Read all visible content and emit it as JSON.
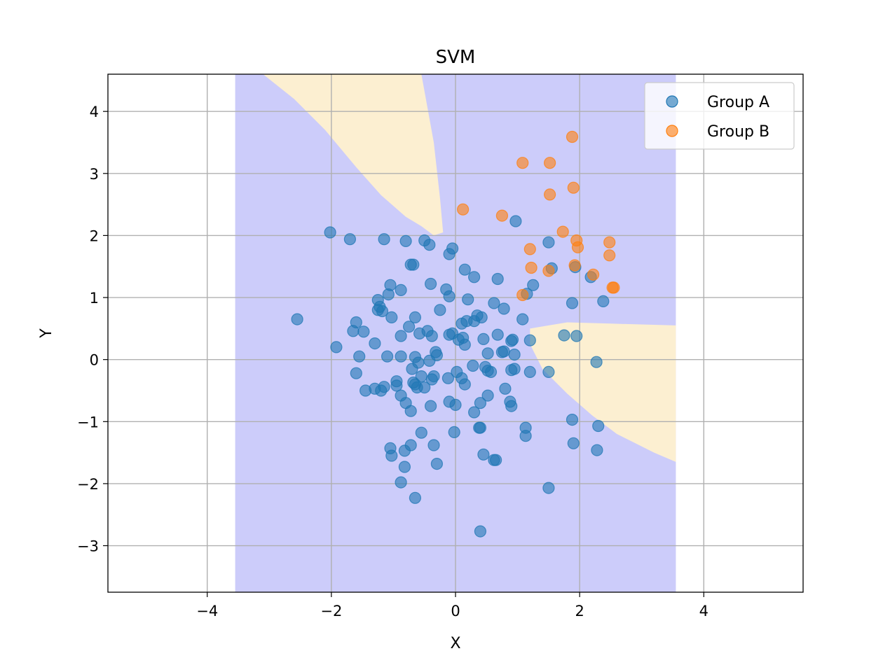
{
  "chart_data": {
    "type": "scatter",
    "title": "SVM",
    "xlabel": "X",
    "ylabel": "Y",
    "xlim": [
      -5.6,
      5.6
    ],
    "ylim": [
      -3.75,
      4.6
    ],
    "xticks": [
      -4,
      -2,
      0,
      2,
      4
    ],
    "yticks": [
      -3,
      -2,
      -1,
      0,
      1,
      2,
      3,
      4
    ],
    "xtick_labels": [
      "−4",
      "−2",
      "0",
      "2",
      "4"
    ],
    "ytick_labels": [
      "−3",
      "−2",
      "−1",
      "0",
      "1",
      "2",
      "3",
      "4"
    ],
    "grid": true,
    "legend_position": "top-right",
    "colors": {
      "group_a": "#1f77b4",
      "group_b": "#ff7f0e",
      "region_a": "#ccccfa",
      "region_b": "#fcefd1",
      "grid": "#b0b0b0"
    },
    "decision_regions": [
      {
        "class": "Group A",
        "polygon": [
          [
            -3.55,
            -3.75
          ],
          [
            3.55,
            -3.75
          ],
          [
            3.55,
            4.6
          ],
          [
            -3.55,
            4.6
          ]
        ]
      },
      {
        "class": "Group B",
        "polygon": [
          [
            -3.1,
            4.6
          ],
          [
            -2.6,
            4.2
          ],
          [
            -2.1,
            3.7
          ],
          [
            -1.6,
            3.1
          ],
          [
            -1.2,
            2.65
          ],
          [
            -0.8,
            2.3
          ],
          [
            -0.55,
            2.15
          ],
          [
            -0.35,
            2.0
          ],
          [
            -0.2,
            2.05
          ],
          [
            -0.25,
            2.6
          ],
          [
            -0.35,
            3.5
          ],
          [
            -0.55,
            4.6
          ]
        ]
      },
      {
        "class": "Group B",
        "polygon": [
          [
            1.2,
            0.5
          ],
          [
            1.5,
            0.55
          ],
          [
            1.8,
            0.6
          ],
          [
            2.5,
            0.58
          ],
          [
            3.55,
            0.55
          ],
          [
            3.55,
            -1.65
          ],
          [
            3.2,
            -1.5
          ],
          [
            2.6,
            -1.2
          ],
          [
            2.2,
            -0.9
          ],
          [
            1.8,
            -0.55
          ],
          [
            1.4,
            -0.15
          ],
          [
            1.2,
            0.25
          ]
        ]
      }
    ],
    "series": [
      {
        "name": "Group A",
        "points": [
          [
            -2.55,
            0.65
          ],
          [
            -2.02,
            2.05
          ],
          [
            -1.7,
            1.94
          ],
          [
            -1.15,
            1.94
          ],
          [
            -0.8,
            1.91
          ],
          [
            -0.5,
            1.92
          ],
          [
            -0.42,
            1.85
          ],
          [
            -0.05,
            1.79
          ],
          [
            -0.1,
            1.7
          ],
          [
            -0.72,
            1.53
          ],
          [
            -0.68,
            1.53
          ],
          [
            0.15,
            1.45
          ],
          [
            0.3,
            1.33
          ],
          [
            0.68,
            1.3
          ],
          [
            0.97,
            2.23
          ],
          [
            1.5,
            1.89
          ],
          [
            1.55,
            1.47
          ],
          [
            1.93,
            1.49
          ],
          [
            2.18,
            1.33
          ],
          [
            2.38,
            0.94
          ],
          [
            1.88,
            0.91
          ],
          [
            1.25,
            1.2
          ],
          [
            1.15,
            1.06
          ],
          [
            1.08,
            0.65
          ],
          [
            1.2,
            0.31
          ],
          [
            1.75,
            0.39
          ],
          [
            1.95,
            0.38
          ],
          [
            2.27,
            -0.04
          ],
          [
            1.5,
            -0.2
          ],
          [
            1.2,
            -0.2
          ],
          [
            0.95,
            -0.15
          ],
          [
            0.9,
            -0.17
          ],
          [
            0.95,
            0.08
          ],
          [
            0.78,
            0.13
          ],
          [
            0.75,
            0.12
          ],
          [
            0.92,
            0.32
          ],
          [
            0.9,
            0.3
          ],
          [
            0.68,
            0.4
          ],
          [
            0.78,
            0.82
          ],
          [
            0.62,
            0.91
          ],
          [
            0.35,
            0.71
          ],
          [
            0.42,
            0.68
          ],
          [
            0.3,
            0.62
          ],
          [
            0.2,
            0.97
          ],
          [
            -0.15,
            1.13
          ],
          [
            -0.1,
            1.02
          ],
          [
            -0.4,
            1.22
          ],
          [
            -0.25,
            0.8
          ],
          [
            -0.88,
            1.12
          ],
          [
            -1.05,
            1.2
          ],
          [
            -1.08,
            1.05
          ],
          [
            -1.25,
            0.96
          ],
          [
            -1.22,
            0.85
          ],
          [
            -1.25,
            0.8
          ],
          [
            -1.18,
            0.78
          ],
          [
            -1.03,
            0.68
          ],
          [
            -0.65,
            0.68
          ],
          [
            -0.75,
            0.53
          ],
          [
            -0.58,
            0.42
          ],
          [
            -0.45,
            0.46
          ],
          [
            -0.38,
            0.38
          ],
          [
            -0.1,
            0.4
          ],
          [
            -0.05,
            0.42
          ],
          [
            0.05,
            0.32
          ],
          [
            0.1,
            0.58
          ],
          [
            0.18,
            0.62
          ],
          [
            0.12,
            0.35
          ],
          [
            0.15,
            0.24
          ],
          [
            0.45,
            0.33
          ],
          [
            0.52,
            0.1
          ],
          [
            -1.6,
            0.6
          ],
          [
            -1.65,
            0.46
          ],
          [
            -1.48,
            0.45
          ],
          [
            -1.3,
            0.26
          ],
          [
            -1.92,
            0.2
          ],
          [
            -1.55,
            0.05
          ],
          [
            -1.1,
            0.05
          ],
          [
            -0.88,
            0.38
          ],
          [
            -0.88,
            0.05
          ],
          [
            -0.65,
            0.04
          ],
          [
            -0.6,
            -0.05
          ],
          [
            -0.42,
            -0.02
          ],
          [
            -0.3,
            0.07
          ],
          [
            -0.32,
            0.12
          ],
          [
            -0.7,
            -0.15
          ],
          [
            -0.55,
            -0.27
          ],
          [
            -0.35,
            -0.27
          ],
          [
            -0.38,
            -0.32
          ],
          [
            -0.12,
            -0.3
          ],
          [
            0.02,
            -0.2
          ],
          [
            0.1,
            -0.3
          ],
          [
            0.15,
            -0.4
          ],
          [
            0.28,
            -0.1
          ],
          [
            0.48,
            -0.12
          ],
          [
            0.52,
            -0.18
          ],
          [
            0.57,
            -0.2
          ],
          [
            -1.6,
            -0.22
          ],
          [
            -1.45,
            -0.5
          ],
          [
            -1.3,
            -0.47
          ],
          [
            -1.2,
            -0.5
          ],
          [
            -1.15,
            -0.44
          ],
          [
            -0.95,
            -0.35
          ],
          [
            -0.95,
            -0.42
          ],
          [
            -0.68,
            -0.37
          ],
          [
            -0.65,
            -0.4
          ],
          [
            -0.62,
            -0.45
          ],
          [
            -0.5,
            -0.45
          ],
          [
            -0.88,
            -0.58
          ],
          [
            -0.8,
            -0.7
          ],
          [
            -0.72,
            -0.83
          ],
          [
            -0.4,
            -0.75
          ],
          [
            -0.1,
            -0.68
          ],
          [
            0.0,
            -0.73
          ],
          [
            0.3,
            -0.85
          ],
          [
            0.4,
            -0.7
          ],
          [
            0.52,
            -0.58
          ],
          [
            0.8,
            -0.47
          ],
          [
            0.88,
            -0.68
          ],
          [
            0.9,
            -0.75
          ],
          [
            1.13,
            -1.1
          ],
          [
            1.13,
            -1.23
          ],
          [
            1.88,
            -0.97
          ],
          [
            1.9,
            -1.35
          ],
          [
            2.3,
            -1.07
          ],
          [
            2.28,
            -1.46
          ],
          [
            -0.55,
            -1.18
          ],
          [
            -0.35,
            -1.38
          ],
          [
            -0.3,
            -1.68
          ],
          [
            -0.02,
            -1.17
          ],
          [
            0.38,
            -1.1
          ],
          [
            0.4,
            -1.1
          ],
          [
            0.45,
            -1.53
          ],
          [
            0.62,
            -1.62
          ],
          [
            0.65,
            -1.62
          ],
          [
            -1.05,
            -1.43
          ],
          [
            -1.03,
            -1.55
          ],
          [
            -0.72,
            -1.38
          ],
          [
            -0.82,
            -1.47
          ],
          [
            -0.82,
            -1.73
          ],
          [
            -0.88,
            -1.98
          ],
          [
            -0.65,
            -2.23
          ],
          [
            1.5,
            -2.07
          ],
          [
            0.4,
            -2.77
          ]
        ]
      },
      {
        "name": "Group B",
        "points": [
          [
            1.88,
            3.59
          ],
          [
            1.08,
            3.17
          ],
          [
            1.52,
            3.17
          ],
          [
            1.52,
            2.66
          ],
          [
            1.9,
            2.77
          ],
          [
            0.12,
            2.42
          ],
          [
            0.75,
            2.32
          ],
          [
            1.73,
            2.06
          ],
          [
            1.95,
            1.92
          ],
          [
            1.97,
            1.81
          ],
          [
            1.2,
            1.78
          ],
          [
            2.48,
            1.89
          ],
          [
            2.48,
            1.68
          ],
          [
            1.22,
            1.48
          ],
          [
            1.5,
            1.43
          ],
          [
            1.92,
            1.52
          ],
          [
            2.22,
            1.37
          ],
          [
            2.55,
            1.16
          ],
          [
            2.53,
            1.16
          ],
          [
            1.08,
            1.04
          ]
        ]
      }
    ]
  }
}
